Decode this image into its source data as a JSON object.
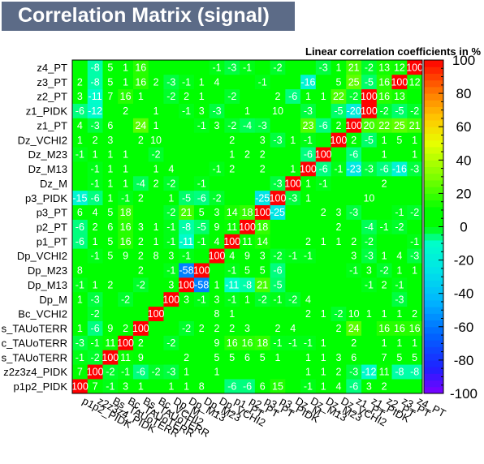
{
  "chart_data": {
    "type": "heatmap",
    "title": "Correlation Matrix (signal)",
    "z_title": "Linear correlation coefficients in %",
    "variables": [
      "p1p2_PIDK",
      "z2z3z4_PIDK",
      "Bs_TAUoTERR",
      "Bc_TAUoTERR",
      "Bs_TAUoTERR",
      "Bc_VCHI2",
      "Dp_M",
      "Dp_M13",
      "Dp_M23",
      "Dp_VCHI2",
      "p1_PT",
      "p2_PT",
      "p3_PT",
      "p3_PIDK",
      "Dz_M",
      "Dz_M13",
      "Dz_M23",
      "Dz_VCHI2",
      "z1_PT",
      "z1_PIDK",
      "z2_PT",
      "z3_PT",
      "z4_PT"
    ],
    "y_labels_shown": [
      "p1p2_PIDK",
      "z2z3z4_PIDK",
      "s_TAUoTERR",
      "c_TAUoTERR",
      "s_TAUoTERR",
      "Bc_VCHI2",
      "Dp_M",
      "Dp_M13",
      "Dp_M23",
      "Dp_VCHI2",
      "p1_PT",
      "p2_PT",
      "p3_PT",
      "p3_PIDK",
      "Dz_M",
      "Dz_M13",
      "Dz_M23",
      "Dz_VCHI2",
      "z1_PT",
      "z1_PIDK",
      "z2_PT",
      "z3_PT",
      "z4_PT"
    ],
    "x_labels_shown": [
      "p1p2_PIDK",
      "z2z3z4_PIDK",
      "Bs_TAUoTERR",
      "Bc_TAUoTERR",
      "Bs_TAUoTERR",
      "Bc_VCHI2",
      "Dp_M",
      "Dp_M13",
      "Dp_M23",
      "Dp_VCHI2",
      "p1_PT",
      "p2_PT",
      "p3_PT",
      "p3_PIDK",
      "Dz_M",
      "Dz_M13",
      "Dz_M23",
      "Dz_VCHI2",
      "z1_PT",
      "z1_PIDK",
      "z2_PT",
      "z3_PT",
      "z4_PT"
    ],
    "rows_bottom_to_top": [
      [
        100,
        7,
        -1,
        3,
        1,
        0,
        1,
        1,
        8,
        0,
        -6,
        -6,
        6,
        15,
        0,
        -1,
        1,
        4,
        -6,
        3,
        2,
        0,
        0
      ],
      [
        7,
        100,
        -2,
        -1,
        -6,
        -2,
        -3,
        1,
        0,
        1,
        0,
        0,
        0,
        0,
        0,
        1,
        1,
        2,
        -3,
        -12,
        11,
        -8,
        -8
      ],
      [
        -1,
        -2,
        100,
        11,
        9,
        0,
        0,
        2,
        0,
        5,
        5,
        6,
        5,
        1,
        0,
        1,
        1,
        3,
        6,
        0,
        7,
        5,
        5
      ],
      [
        -3,
        -1,
        11,
        100,
        2,
        0,
        -2,
        0,
        0,
        9,
        16,
        16,
        18,
        -1,
        -1,
        -1,
        1,
        0,
        2,
        0,
        1,
        1,
        1
      ],
      [
        1,
        -6,
        9,
        2,
        100,
        0,
        0,
        -2,
        2,
        2,
        2,
        3,
        0,
        2,
        4,
        0,
        0,
        2,
        24,
        0,
        16,
        16,
        16
      ],
      [
        0,
        -2,
        0,
        0,
        0,
        100,
        0,
        0,
        0,
        8,
        1,
        0,
        0,
        0,
        0,
        2,
        1,
        -2,
        10,
        1,
        1,
        1,
        2
      ],
      [
        1,
        -3,
        0,
        -2,
        0,
        0,
        100,
        3,
        -1,
        3,
        -1,
        1,
        -2,
        -1,
        -2,
        4,
        0,
        0,
        0,
        0,
        0,
        -3,
        0
      ],
      [
        -1,
        1,
        2,
        0,
        -2,
        0,
        3,
        100,
        -58,
        1,
        -11,
        -8,
        21,
        -5,
        0,
        0,
        0,
        0,
        0,
        -1,
        2,
        -1,
        0
      ],
      [
        8,
        0,
        0,
        0,
        2,
        0,
        -1,
        -58,
        100,
        0,
        -1,
        5,
        5,
        -6,
        0,
        0,
        0,
        0,
        -1,
        3,
        -2,
        1,
        1
      ],
      [
        0,
        -1,
        5,
        9,
        2,
        8,
        3,
        -1,
        0,
        100,
        4,
        9,
        3,
        -2,
        -1,
        -1,
        0,
        0,
        3,
        -3,
        1,
        4,
        -3
      ],
      [
        -6,
        1,
        5,
        16,
        2,
        1,
        -1,
        -11,
        -1,
        4,
        100,
        11,
        14,
        0,
        0,
        2,
        1,
        1,
        2,
        -2,
        0,
        0,
        -1
      ],
      [
        -6,
        2,
        6,
        16,
        3,
        1,
        -1,
        -8,
        -5,
        9,
        11,
        100,
        18,
        0,
        0,
        0,
        0,
        2,
        0,
        -4,
        -1,
        -2,
        0
      ],
      [
        6,
        4,
        5,
        18,
        0,
        0,
        -2,
        21,
        5,
        3,
        14,
        18,
        100,
        -25,
        0,
        0,
        2,
        3,
        -3,
        0,
        0,
        -1,
        -2
      ],
      [
        -15,
        -6,
        1,
        -1,
        2,
        0,
        1,
        -5,
        -6,
        -2,
        0,
        0,
        -25,
        100,
        -3,
        1,
        0,
        0,
        0,
        10,
        0,
        0,
        0
      ],
      [
        0,
        -1,
        1,
        1,
        -4,
        2,
        -2,
        0,
        -1,
        0,
        0,
        0,
        0,
        -3,
        100,
        1,
        -1,
        0,
        0,
        0,
        2,
        0,
        0
      ],
      [
        0,
        -1,
        1,
        1,
        0,
        1,
        4,
        0,
        0,
        -1,
        2,
        0,
        2,
        0,
        1,
        100,
        -6,
        -1,
        -23,
        -3,
        -6,
        -16,
        -3
      ],
      [
        -1,
        1,
        1,
        1,
        0,
        -2,
        0,
        0,
        0,
        0,
        1,
        2,
        2,
        0,
        0,
        -6,
        100,
        0,
        -6,
        0,
        1,
        0,
        1
      ],
      [
        1,
        2,
        3,
        0,
        2,
        10,
        0,
        0,
        0,
        0,
        2,
        0,
        3,
        -3,
        1,
        -1,
        0,
        100,
        2,
        -5,
        1,
        5,
        1
      ],
      [
        4,
        -3,
        6,
        0,
        24,
        1,
        0,
        0,
        -1,
        3,
        -2,
        -4,
        -3,
        0,
        0,
        23,
        -6,
        2,
        100,
        20,
        22,
        25,
        21
      ],
      [
        -6,
        -12,
        0,
        2,
        0,
        1,
        0,
        -1,
        3,
        -3,
        0,
        1,
        0,
        10,
        0,
        -3,
        0,
        -5,
        -20,
        100,
        -2,
        -5,
        -2
      ],
      [
        3,
        -11,
        7,
        16,
        1,
        0,
        -2,
        2,
        1,
        0,
        -2,
        0,
        0,
        2,
        -6,
        1,
        1,
        22,
        -2,
        100,
        16,
        13,
        0
      ],
      [
        2,
        -8,
        5,
        1,
        16,
        2,
        -3,
        -1,
        1,
        4,
        0,
        0,
        -1,
        0,
        0,
        -16,
        0,
        5,
        25,
        -5,
        16,
        100,
        12
      ],
      [
        0,
        -8,
        5,
        1,
        16,
        0,
        0,
        0,
        0,
        -1,
        -3,
        -1,
        0,
        -2,
        0,
        0,
        -3,
        1,
        21,
        -2,
        13,
        12,
        100
      ]
    ],
    "color_scale": {
      "min": -100,
      "max": 100,
      "ticks": [
        -100,
        -80,
        -60,
        -40,
        -20,
        0,
        20,
        40,
        60,
        80,
        100
      ],
      "stops": [
        {
          "v": -100,
          "c": "#7d00ff"
        },
        {
          "v": -85,
          "c": "#2020ff"
        },
        {
          "v": -65,
          "c": "#0064ff"
        },
        {
          "v": -45,
          "c": "#00b4ff"
        },
        {
          "v": -25,
          "c": "#00e6e6"
        },
        {
          "v": -9.5,
          "c": "#00ffc8"
        },
        {
          "v": 0,
          "c": "#00ff00"
        },
        {
          "v": 10,
          "c": "#00ff00"
        },
        {
          "v": 30,
          "c": "#7dff00"
        },
        {
          "v": 50,
          "c": "#e6ff00"
        },
        {
          "v": 65,
          "c": "#ffc800"
        },
        {
          "v": 80,
          "c": "#ff7d00"
        },
        {
          "v": 100,
          "c": "#ff0000"
        }
      ]
    }
  }
}
